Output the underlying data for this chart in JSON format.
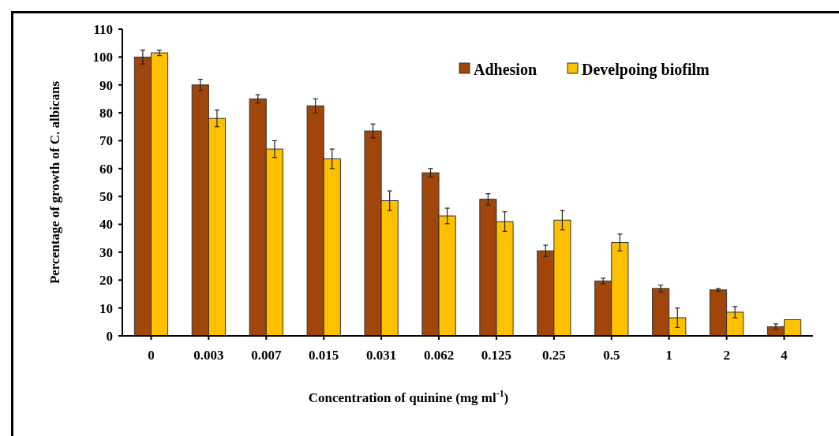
{
  "chart_data": {
    "type": "bar",
    "xlabel": "Concentration of  quinine  (mg ml$^{-1}$)",
    "ylabel": "Percentage of growth  of C. albicans",
    "categories": [
      "0",
      "0.003",
      "0.007",
      "0.015",
      "0.031",
      "0.062",
      "0.125",
      "0.25",
      "0.5",
      "1",
      "2",
      "4"
    ],
    "series": [
      {
        "name": "Adhesion",
        "color": "#a0460a",
        "values": [
          100,
          90,
          85,
          82.5,
          73.5,
          58.5,
          49,
          30.5,
          19.7,
          17,
          16.5,
          3.3
        ],
        "errors": [
          2.5,
          2,
          1.5,
          2.5,
          2.5,
          1.5,
          2,
          2,
          1,
          1.2,
          0.5,
          1
        ]
      },
      {
        "name": "Develpoing biofilm",
        "color": "#ffc000",
        "values": [
          101.5,
          78,
          67,
          63.5,
          48.5,
          43,
          41,
          41.5,
          33.5,
          6.5,
          8.5,
          5.8
        ],
        "errors": [
          1,
          3,
          3,
          3.5,
          3.5,
          2.8,
          3.5,
          3.5,
          3,
          3.5,
          2,
          null
        ]
      }
    ],
    "ylim": [
      0,
      110
    ],
    "yticks": [
      0,
      10,
      20,
      30,
      40,
      50,
      60,
      70,
      80,
      90,
      100,
      110
    ],
    "legend": "top right",
    "grid": false
  }
}
